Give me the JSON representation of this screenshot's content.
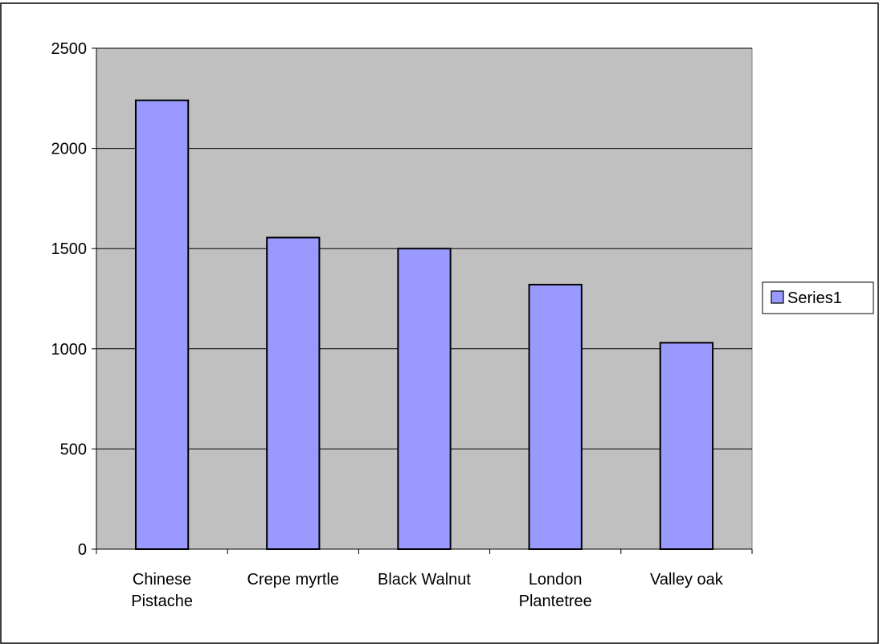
{
  "chart_data": {
    "type": "bar",
    "title": "",
    "xlabel": "",
    "ylabel": "",
    "categories": [
      "Chinese Pistache",
      "Crepe myrtle",
      "Black Walnut",
      "London Plantetree",
      "Valley oak"
    ],
    "category_lines": [
      [
        "Chinese",
        "Pistache"
      ],
      [
        "Crepe myrtle"
      ],
      [
        "Black Walnut"
      ],
      [
        "London",
        "Plantetree"
      ],
      [
        "Valley oak"
      ]
    ],
    "series": [
      {
        "name": "Series1",
        "values": [
          2240,
          1555,
          1500,
          1320,
          1030
        ]
      }
    ],
    "ylim": [
      0,
      2500
    ],
    "yticks": [
      0,
      500,
      1000,
      1500,
      2000,
      2500
    ],
    "grid": true,
    "legend": "right",
    "colors": {
      "plot_bg": "#c0c0c0",
      "bar_fill": "#9999ff",
      "bar_stroke": "#000000",
      "grid": "#000000"
    }
  }
}
